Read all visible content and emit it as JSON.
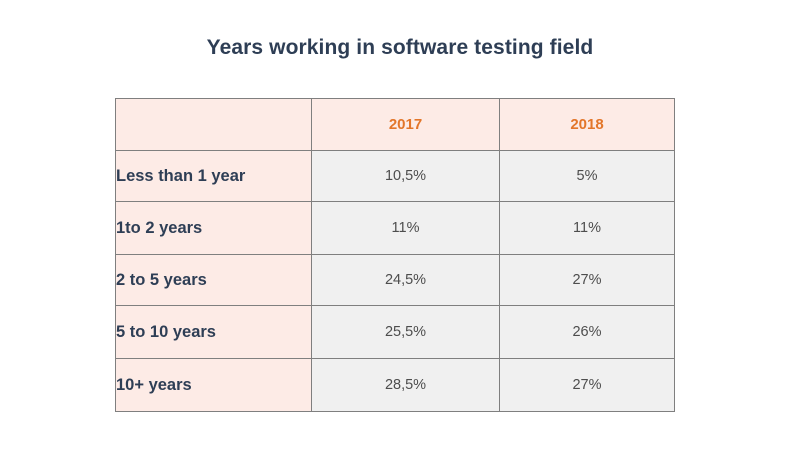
{
  "chart_data": {
    "type": "table",
    "title": "Years working in software testing field",
    "columns": [
      "2017",
      "2018"
    ],
    "rows": [
      {
        "label": "Less than 1 year",
        "values": [
          "10,5%",
          "5%"
        ]
      },
      {
        "label": "1to 2 years",
        "values": [
          "11%",
          "11%"
        ]
      },
      {
        "label": "2 to 5 years",
        "values": [
          "24,5%",
          "27%"
        ]
      },
      {
        "label": "5 to 10 years",
        "values": [
          "25,5%",
          "26%"
        ]
      },
      {
        "label": "10+ years",
        "values": [
          "28,5%",
          "27%"
        ]
      }
    ],
    "colors": {
      "title": "#2e3e55",
      "header_text": "#e3762a",
      "label_background": "#fdebe6",
      "value_background": "#f0f0f0",
      "border": "#7f7f7f"
    }
  }
}
